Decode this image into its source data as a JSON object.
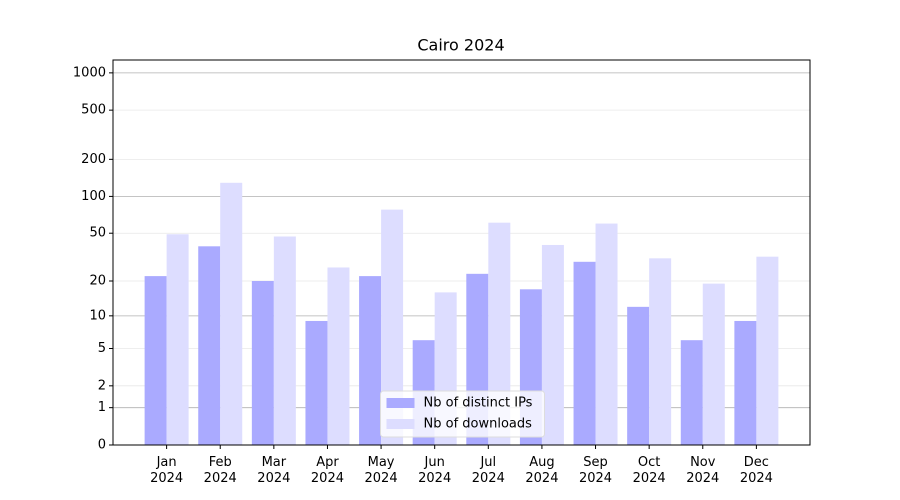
{
  "chart_data": {
    "type": "bar",
    "title": "Cairo 2024",
    "categories": [
      "Jan\n2024",
      "Feb\n2024",
      "Mar\n2024",
      "Apr\n2024",
      "May\n2024",
      "Jun\n2024",
      "Jul\n2024",
      "Aug\n2024",
      "Sep\n2024",
      "Oct\n2024",
      "Nov\n2024",
      "Dec\n2024"
    ],
    "series": [
      {
        "name": "Nb of distinct IPs",
        "color": "#aaaaff",
        "values": [
          22,
          39,
          20,
          9,
          22,
          6,
          23,
          17,
          29,
          12,
          6,
          9
        ]
      },
      {
        "name": "Nb of downloads",
        "color": "#ddddff",
        "values": [
          49,
          129,
          47,
          26,
          78,
          16,
          61,
          40,
          60,
          31,
          19,
          32
        ]
      }
    ],
    "yscale": "log1p",
    "ylim": [
      0,
      1270
    ],
    "yticks": [
      0,
      1,
      2,
      5,
      10,
      20,
      50,
      100,
      200,
      500,
      1000
    ],
    "grid": true,
    "legend": "lower center"
  }
}
